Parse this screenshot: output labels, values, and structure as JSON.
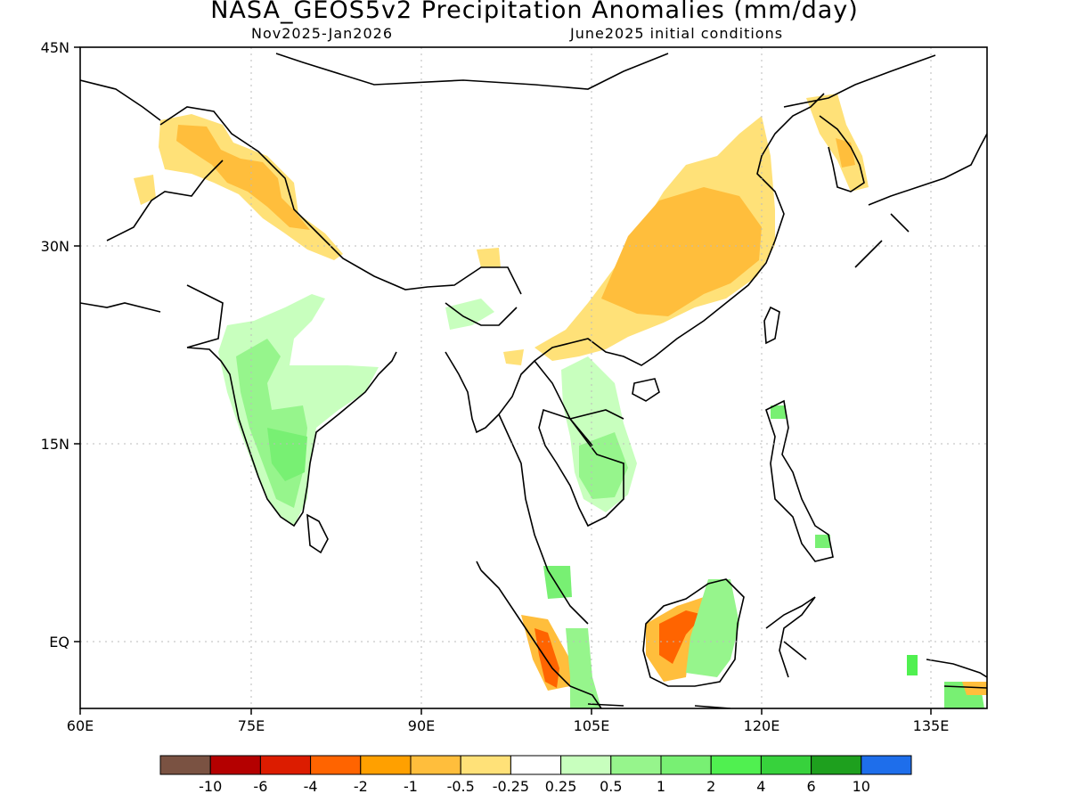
{
  "header": {
    "title": "NASA_GEOS5v2 Precipitation Anomalies (mm/day)",
    "period": "Nov2025-Jan2026",
    "init": "June2025 initial conditions"
  },
  "map": {
    "lon_range": [
      60,
      140
    ],
    "lat_range": [
      -3,
      45
    ],
    "x_ticks": [
      "60E",
      "75E",
      "90E",
      "105E",
      "120E",
      "135E"
    ],
    "y_ticks": [
      "45N",
      "30N",
      "15N",
      "EQ"
    ]
  },
  "colorbar": {
    "colors": [
      "#7a5242",
      "#b40000",
      "#dc1c00",
      "#ff6400",
      "#ffa000",
      "#ffbe3c",
      "#ffe178",
      "#ffffff",
      "#c8ffbe",
      "#96f58c",
      "#78f073",
      "#50f050",
      "#37d23c",
      "#1ea01e",
      "#1e6eeb"
    ],
    "labels": [
      "-10",
      "-6",
      "-4",
      "-2",
      "-1",
      "-0.5",
      "-0.25",
      "0.25",
      "0.5",
      "1",
      "2",
      "4",
      "6",
      "10"
    ]
  }
}
